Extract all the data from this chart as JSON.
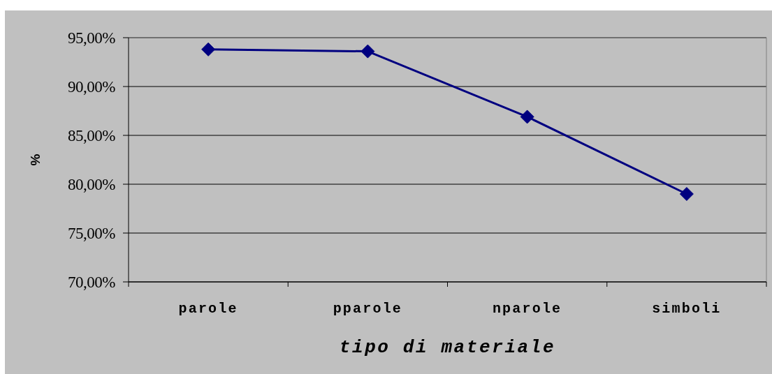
{
  "chart_data": {
    "type": "line",
    "xlabel": "tipo di materiale",
    "ylabel": "%",
    "categories": [
      "parole",
      "pparole",
      "nparole",
      "simboli"
    ],
    "values": [
      93.8,
      93.6,
      86.9,
      79.0
    ],
    "color": "#000080",
    "ylim": [
      70,
      95
    ],
    "yticks": [
      {
        "value": 70,
        "label": "70,00%"
      },
      {
        "value": 75,
        "label": "75,00%"
      },
      {
        "value": 80,
        "label": "80,00%"
      },
      {
        "value": 85,
        "label": "85,00%"
      },
      {
        "value": 90,
        "label": "90,00%"
      },
      {
        "value": 95,
        "label": "95,00%"
      }
    ],
    "grid": "y",
    "marker": "diamond",
    "line_style": "solid"
  }
}
